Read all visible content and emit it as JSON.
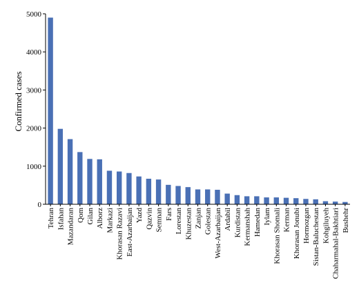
{
  "chart_data": {
    "type": "bar",
    "title": "",
    "xlabel": "",
    "ylabel": "Confirmed cases",
    "ylim": [
      0,
      5000
    ],
    "yticks": [
      0,
      1000,
      2000,
      3000,
      4000,
      5000
    ],
    "grid": false,
    "legend": "none",
    "bar_color": "#4a70b5",
    "categories": [
      "Tehran",
      "Isfahan",
      "Mazandaran",
      "Qom",
      "Gilan",
      "Alborz",
      "Markazi",
      "Khorasan Razavi",
      "East-Azarbaijan",
      "Yazd",
      "Qazvin",
      "Semnan",
      "Fars",
      "Lorestan",
      "Khuzestan",
      "Zanjan",
      "Golestan",
      "West-Azarbaijan",
      "Ardabil",
      "Kurdistan",
      "Kermanshah",
      "Hamedan",
      "Iylam",
      "Khorasan Shomali",
      "Kerman",
      "Khorasan Jonubi",
      "Hormozgan",
      "Sistan-Baluchestan",
      "Kohgiluyeh",
      "Chaharmahal-Bakhtiari",
      "Bushehr"
    ],
    "values": [
      4900,
      1980,
      1710,
      1370,
      1190,
      1180,
      880,
      860,
      820,
      730,
      670,
      650,
      510,
      480,
      450,
      390,
      390,
      380,
      280,
      240,
      210,
      210,
      180,
      180,
      170,
      160,
      140,
      130,
      80,
      70,
      60
    ]
  }
}
